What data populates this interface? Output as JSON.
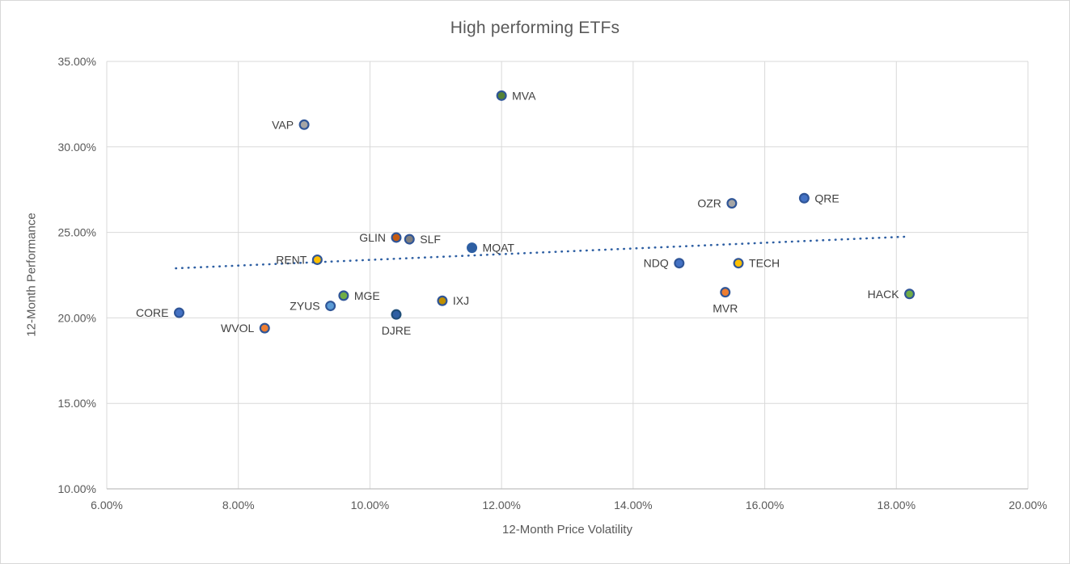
{
  "chart": {
    "title": "High performing ETFs",
    "background": "#ffffff",
    "gridline_color": "#d9d9d9",
    "axis_line_color": "#bfbfbf",
    "title_color": "#595959",
    "tick_color": "#595959",
    "point_label_color": "#404040"
  },
  "chart_data": {
    "type": "scatter",
    "title": "High performing ETFs",
    "xlabel": "12-Month Price Volatility",
    "ylabel": "12-Month Performance",
    "xlim": [
      6,
      20
    ],
    "ylim": [
      10,
      35
    ],
    "grid": true,
    "x_ticks": [
      {
        "value": 6,
        "label": "6.00%"
      },
      {
        "value": 8,
        "label": "8.00%"
      },
      {
        "value": 10,
        "label": "10.00%"
      },
      {
        "value": 12,
        "label": "12.00%"
      },
      {
        "value": 14,
        "label": "14.00%"
      },
      {
        "value": 16,
        "label": "16.00%"
      },
      {
        "value": 18,
        "label": "18.00%"
      },
      {
        "value": 20,
        "label": "20.00%"
      }
    ],
    "y_ticks": [
      {
        "value": 10,
        "label": "10.00%"
      },
      {
        "value": 15,
        "label": "15.00%"
      },
      {
        "value": 20,
        "label": "20.00%"
      },
      {
        "value": 25,
        "label": "25.00%"
      },
      {
        "value": 30,
        "label": "30.00%"
      },
      {
        "value": 35,
        "label": "35.00%"
      }
    ],
    "points": [
      {
        "label": "MVA",
        "x": 12.0,
        "y": 33.0,
        "fill": "#548235",
        "stroke": "#2f5597",
        "label_side": "right"
      },
      {
        "label": "VAP",
        "x": 9.0,
        "y": 31.3,
        "fill": "#a5a5a5",
        "stroke": "#2f5597",
        "label_side": "left"
      },
      {
        "label": "QRE",
        "x": 16.6,
        "y": 27.0,
        "fill": "#4472c4",
        "stroke": "#2f5597",
        "label_side": "right"
      },
      {
        "label": "OZR",
        "x": 15.5,
        "y": 26.7,
        "fill": "#a5a5a5",
        "stroke": "#2f5597",
        "label_side": "left"
      },
      {
        "label": "GLIN",
        "x": 10.4,
        "y": 24.7,
        "fill": "#c55a11",
        "stroke": "#2f5597",
        "label_side": "left"
      },
      {
        "label": "SLF",
        "x": 10.6,
        "y": 24.6,
        "fill": "#7f7f7f",
        "stroke": "#2f5597",
        "label_side": "right"
      },
      {
        "label": "MQAT",
        "x": 11.55,
        "y": 24.1,
        "fill": "#2e5fa3",
        "stroke": "#2e5fa3",
        "label_side": "right"
      },
      {
        "label": "RENT",
        "x": 9.2,
        "y": 23.4,
        "fill": "#ffc000",
        "stroke": "#2f5597",
        "label_side": "left"
      },
      {
        "label": "NDQ",
        "x": 14.7,
        "y": 23.2,
        "fill": "#4472c4",
        "stroke": "#2f5597",
        "label_side": "left"
      },
      {
        "label": "TECH",
        "x": 15.6,
        "y": 23.2,
        "fill": "#ffc000",
        "stroke": "#2f5597",
        "label_side": "right"
      },
      {
        "label": "MVR",
        "x": 15.4,
        "y": 21.5,
        "fill": "#ed7d31",
        "stroke": "#2f5597",
        "label_side": "below"
      },
      {
        "label": "HACK",
        "x": 18.2,
        "y": 21.4,
        "fill": "#70ad47",
        "stroke": "#2f5597",
        "label_side": "left"
      },
      {
        "label": "MGE",
        "x": 9.6,
        "y": 21.3,
        "fill": "#70ad47",
        "stroke": "#2f5597",
        "label_side": "right"
      },
      {
        "label": "IXJ",
        "x": 11.1,
        "y": 21.0,
        "fill": "#bf8f00",
        "stroke": "#2f5597",
        "label_side": "right"
      },
      {
        "label": "ZYUS",
        "x": 9.4,
        "y": 20.7,
        "fill": "#5b9bd5",
        "stroke": "#2f5597",
        "label_side": "left"
      },
      {
        "label": "CORE",
        "x": 7.1,
        "y": 20.3,
        "fill": "#4472c4",
        "stroke": "#2f5597",
        "label_side": "left"
      },
      {
        "label": "DJRE",
        "x": 10.4,
        "y": 20.2,
        "fill": "#2e5fa3",
        "stroke": "#1f4e79",
        "label_side": "below"
      },
      {
        "label": "WVOL",
        "x": 8.4,
        "y": 19.4,
        "fill": "#ed7d31",
        "stroke": "#2f5597",
        "label_side": "left"
      }
    ],
    "trendline": {
      "style": "dotted",
      "color": "#2e5fa3",
      "x1": 7.05,
      "y1": 22.9,
      "x2": 18.15,
      "y2": 24.75
    },
    "legend": null
  }
}
